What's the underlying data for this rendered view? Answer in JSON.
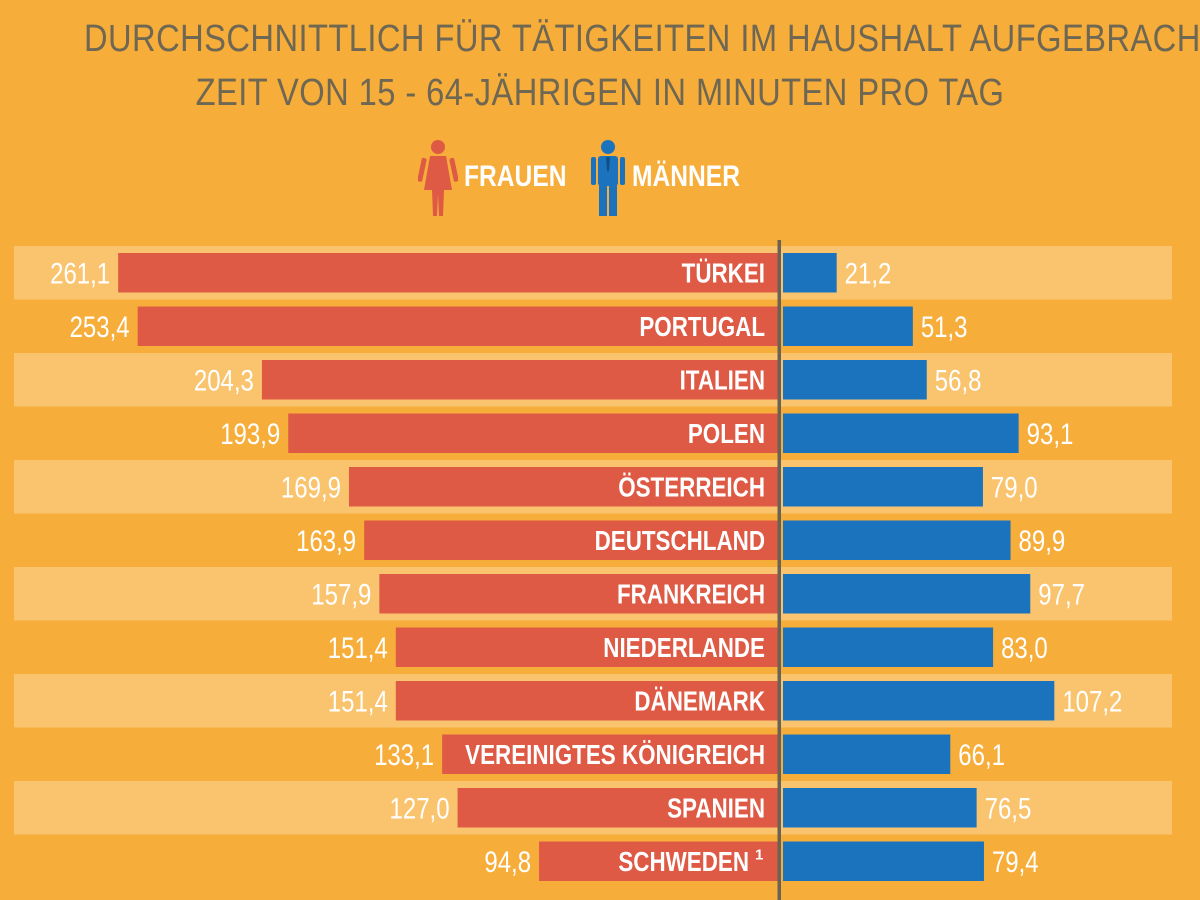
{
  "header": {
    "title_line1": "DURCHSCHNITTLICH FÜR TÄTIGKEITEN IM HAUSHALT AUFGEBRACHTE",
    "title_line2": "ZEIT VON 15 - 64-JÄHRIGEN IN MINUTEN PRO TAG"
  },
  "legend": {
    "women_label": "FRAUEN",
    "men_label": "MÄNNER",
    "women_icon": "woman-icon",
    "men_icon": "man-icon"
  },
  "colors": {
    "background": "#F7AD3A",
    "stripe": "#FAC46E",
    "women": "#DF5A45",
    "men": "#1B73BD",
    "axis": "#6B6256",
    "title": "#6E6753"
  },
  "chart_data": {
    "type": "bar",
    "orientation": "horizontal-diverging",
    "categories": [
      "TÜRKEI",
      "PORTUGAL",
      "ITALIEN",
      "POLEN",
      "ÖSTERREICH",
      "DEUTSCHLAND",
      "FRANKREICH",
      "NIEDERLANDE",
      "DÄNEMARK",
      "VEREINIGTES KÖNIGREICH",
      "SPANIEN",
      "SCHWEDEN"
    ],
    "category_footnotes": [
      "",
      "",
      "",
      "",
      "",
      "",
      "",
      "",
      "",
      "",
      "",
      "1"
    ],
    "series": [
      {
        "name": "FRAUEN",
        "side": "left",
        "values": [
          261.1,
          253.4,
          204.3,
          193.9,
          169.9,
          163.9,
          157.9,
          151.4,
          151.4,
          133.1,
          127.0,
          94.8
        ],
        "labels": [
          "261,1",
          "253,4",
          "204,3",
          "193,9",
          "169,9",
          "163,9",
          "157,9",
          "151,4",
          "151,4",
          "133,1",
          "127,0",
          "94,8"
        ]
      },
      {
        "name": "MÄNNER",
        "side": "right",
        "values": [
          21.2,
          51.3,
          56.8,
          93.1,
          79.0,
          89.9,
          97.7,
          83.0,
          107.2,
          66.1,
          76.5,
          79.4
        ],
        "labels": [
          "21,2",
          "51,3",
          "56,8",
          "93,1",
          "79,0",
          "89,9",
          "97,7",
          "83,0",
          "107,2",
          "66,1",
          "76,5",
          "79,4"
        ]
      }
    ],
    "grid": false
  }
}
